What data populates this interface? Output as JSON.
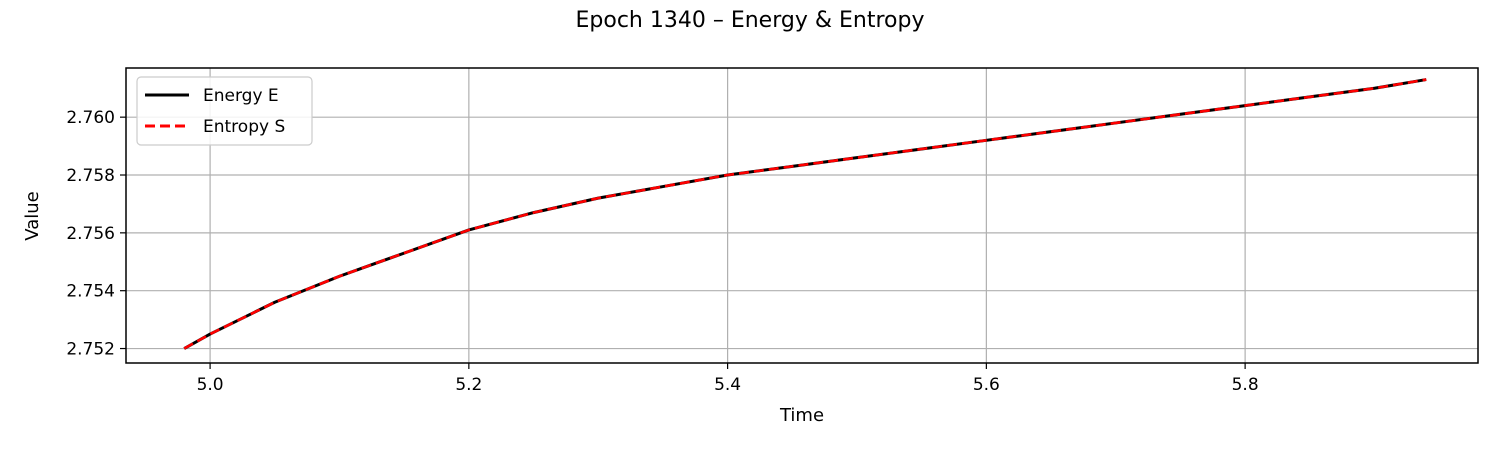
{
  "chart_data": {
    "type": "line",
    "title": "Epoch 1340 – Energy & Entropy",
    "xlabel": "Time",
    "ylabel": "Value",
    "xlim": [
      4.935,
      5.98
    ],
    "ylim": [
      2.7515,
      2.7617
    ],
    "xticks": [
      5.0,
      5.2,
      5.4,
      5.6,
      5.8
    ],
    "xtick_labels": [
      "5.0",
      "5.2",
      "5.4",
      "5.6",
      "5.8"
    ],
    "yticks": [
      2.752,
      2.754,
      2.756,
      2.758,
      2.76
    ],
    "ytick_labels": [
      "2.752",
      "2.754",
      "2.756",
      "2.758",
      "2.760"
    ],
    "grid": true,
    "legend": "top-left",
    "x": [
      4.98,
      5.0,
      5.05,
      5.1,
      5.15,
      5.2,
      5.25,
      5.3,
      5.35,
      5.4,
      5.45,
      5.5,
      5.55,
      5.6,
      5.65,
      5.7,
      5.75,
      5.8,
      5.85,
      5.9,
      5.94
    ],
    "series": [
      {
        "name": "Energy E",
        "color": "#000000",
        "style": "solid",
        "values": [
          2.752,
          2.7525,
          2.7536,
          2.7545,
          2.7553,
          2.7561,
          2.7567,
          2.7572,
          2.7576,
          2.758,
          2.7583,
          2.7586,
          2.7589,
          2.7592,
          2.7595,
          2.7598,
          2.7601,
          2.7604,
          2.7607,
          2.761,
          2.7613
        ]
      },
      {
        "name": "Entropy S",
        "color": "#ff0000",
        "style": "dashed",
        "values": [
          2.752,
          2.7525,
          2.7536,
          2.7545,
          2.7553,
          2.7561,
          2.7567,
          2.7572,
          2.7576,
          2.758,
          2.7583,
          2.7586,
          2.7589,
          2.7592,
          2.7595,
          2.7598,
          2.7601,
          2.7604,
          2.7607,
          2.761,
          2.7613
        ]
      }
    ]
  }
}
